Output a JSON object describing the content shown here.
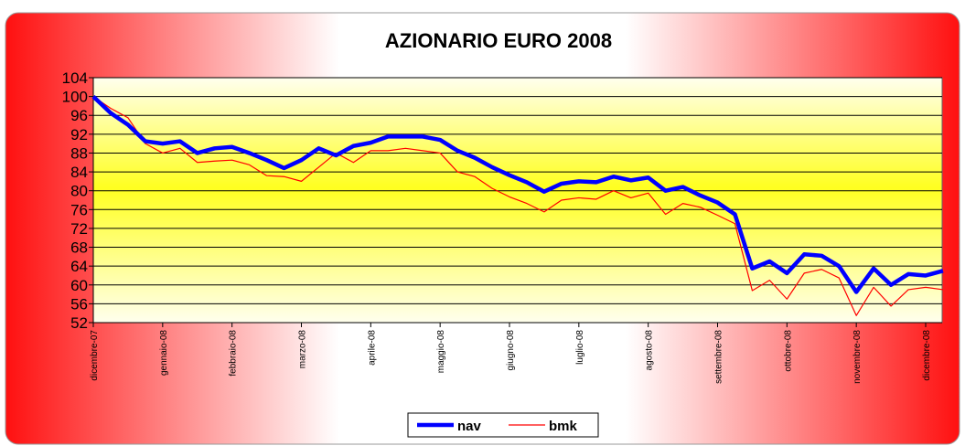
{
  "chart_data": {
    "type": "line",
    "title": "AZIONARIO EURO 2008",
    "categories": [
      "dicembre-07",
      null,
      null,
      null,
      "gennaio-08",
      null,
      null,
      null,
      "febbraio-08",
      null,
      null,
      null,
      "marzo-08",
      null,
      null,
      null,
      "aprile-08",
      null,
      null,
      null,
      "maggio-08",
      null,
      null,
      null,
      "giugno-08",
      null,
      null,
      null,
      "luglio-08",
      null,
      null,
      null,
      "agosto-08",
      null,
      null,
      null,
      "settembre-08",
      null,
      null,
      null,
      "ottobre-08",
      null,
      null,
      null,
      "novembre-08",
      null,
      null,
      null,
      "dicembre-08",
      null
    ],
    "series": [
      {
        "name": "nav",
        "color": "#0000ff",
        "values": [
          100,
          96.5,
          94,
          90.5,
          90,
          90.5,
          88,
          89,
          89.3,
          88,
          86.5,
          84.8,
          86.5,
          89,
          87.5,
          89.5,
          90.2,
          91.5,
          91.5,
          91.5,
          90.8,
          88.5,
          87,
          85,
          83.3,
          81.8,
          79.8,
          81.5,
          82,
          81.8,
          83,
          82.2,
          82.8,
          80,
          80.8,
          79,
          77.5,
          75,
          63.5,
          65,
          62.5,
          66.5,
          66.2,
          64,
          58.5,
          63.5,
          60,
          62.3,
          62,
          63
        ]
      },
      {
        "name": "bmk",
        "color": "#ff0000",
        "values": [
          100,
          97.5,
          95.5,
          90,
          88,
          89,
          86,
          86.3,
          86.5,
          85.5,
          83.2,
          83,
          82,
          85,
          88,
          86,
          88.5,
          88.5,
          89,
          88.5,
          88,
          84,
          83,
          80.5,
          78.7,
          77.3,
          75.5,
          78,
          78.5,
          78.2,
          80,
          78.5,
          79.5,
          75,
          77.3,
          76.5,
          74.8,
          73,
          58.8,
          61,
          57,
          62.5,
          63.3,
          61.5,
          53.5,
          59.5,
          55.5,
          59,
          59.5,
          59
        ]
      }
    ],
    "ylim": [
      52,
      104
    ],
    "yticks": [
      52,
      56,
      60,
      64,
      68,
      72,
      76,
      80,
      84,
      88,
      92,
      96,
      100,
      104
    ],
    "grid": true,
    "legend": "bottom"
  }
}
